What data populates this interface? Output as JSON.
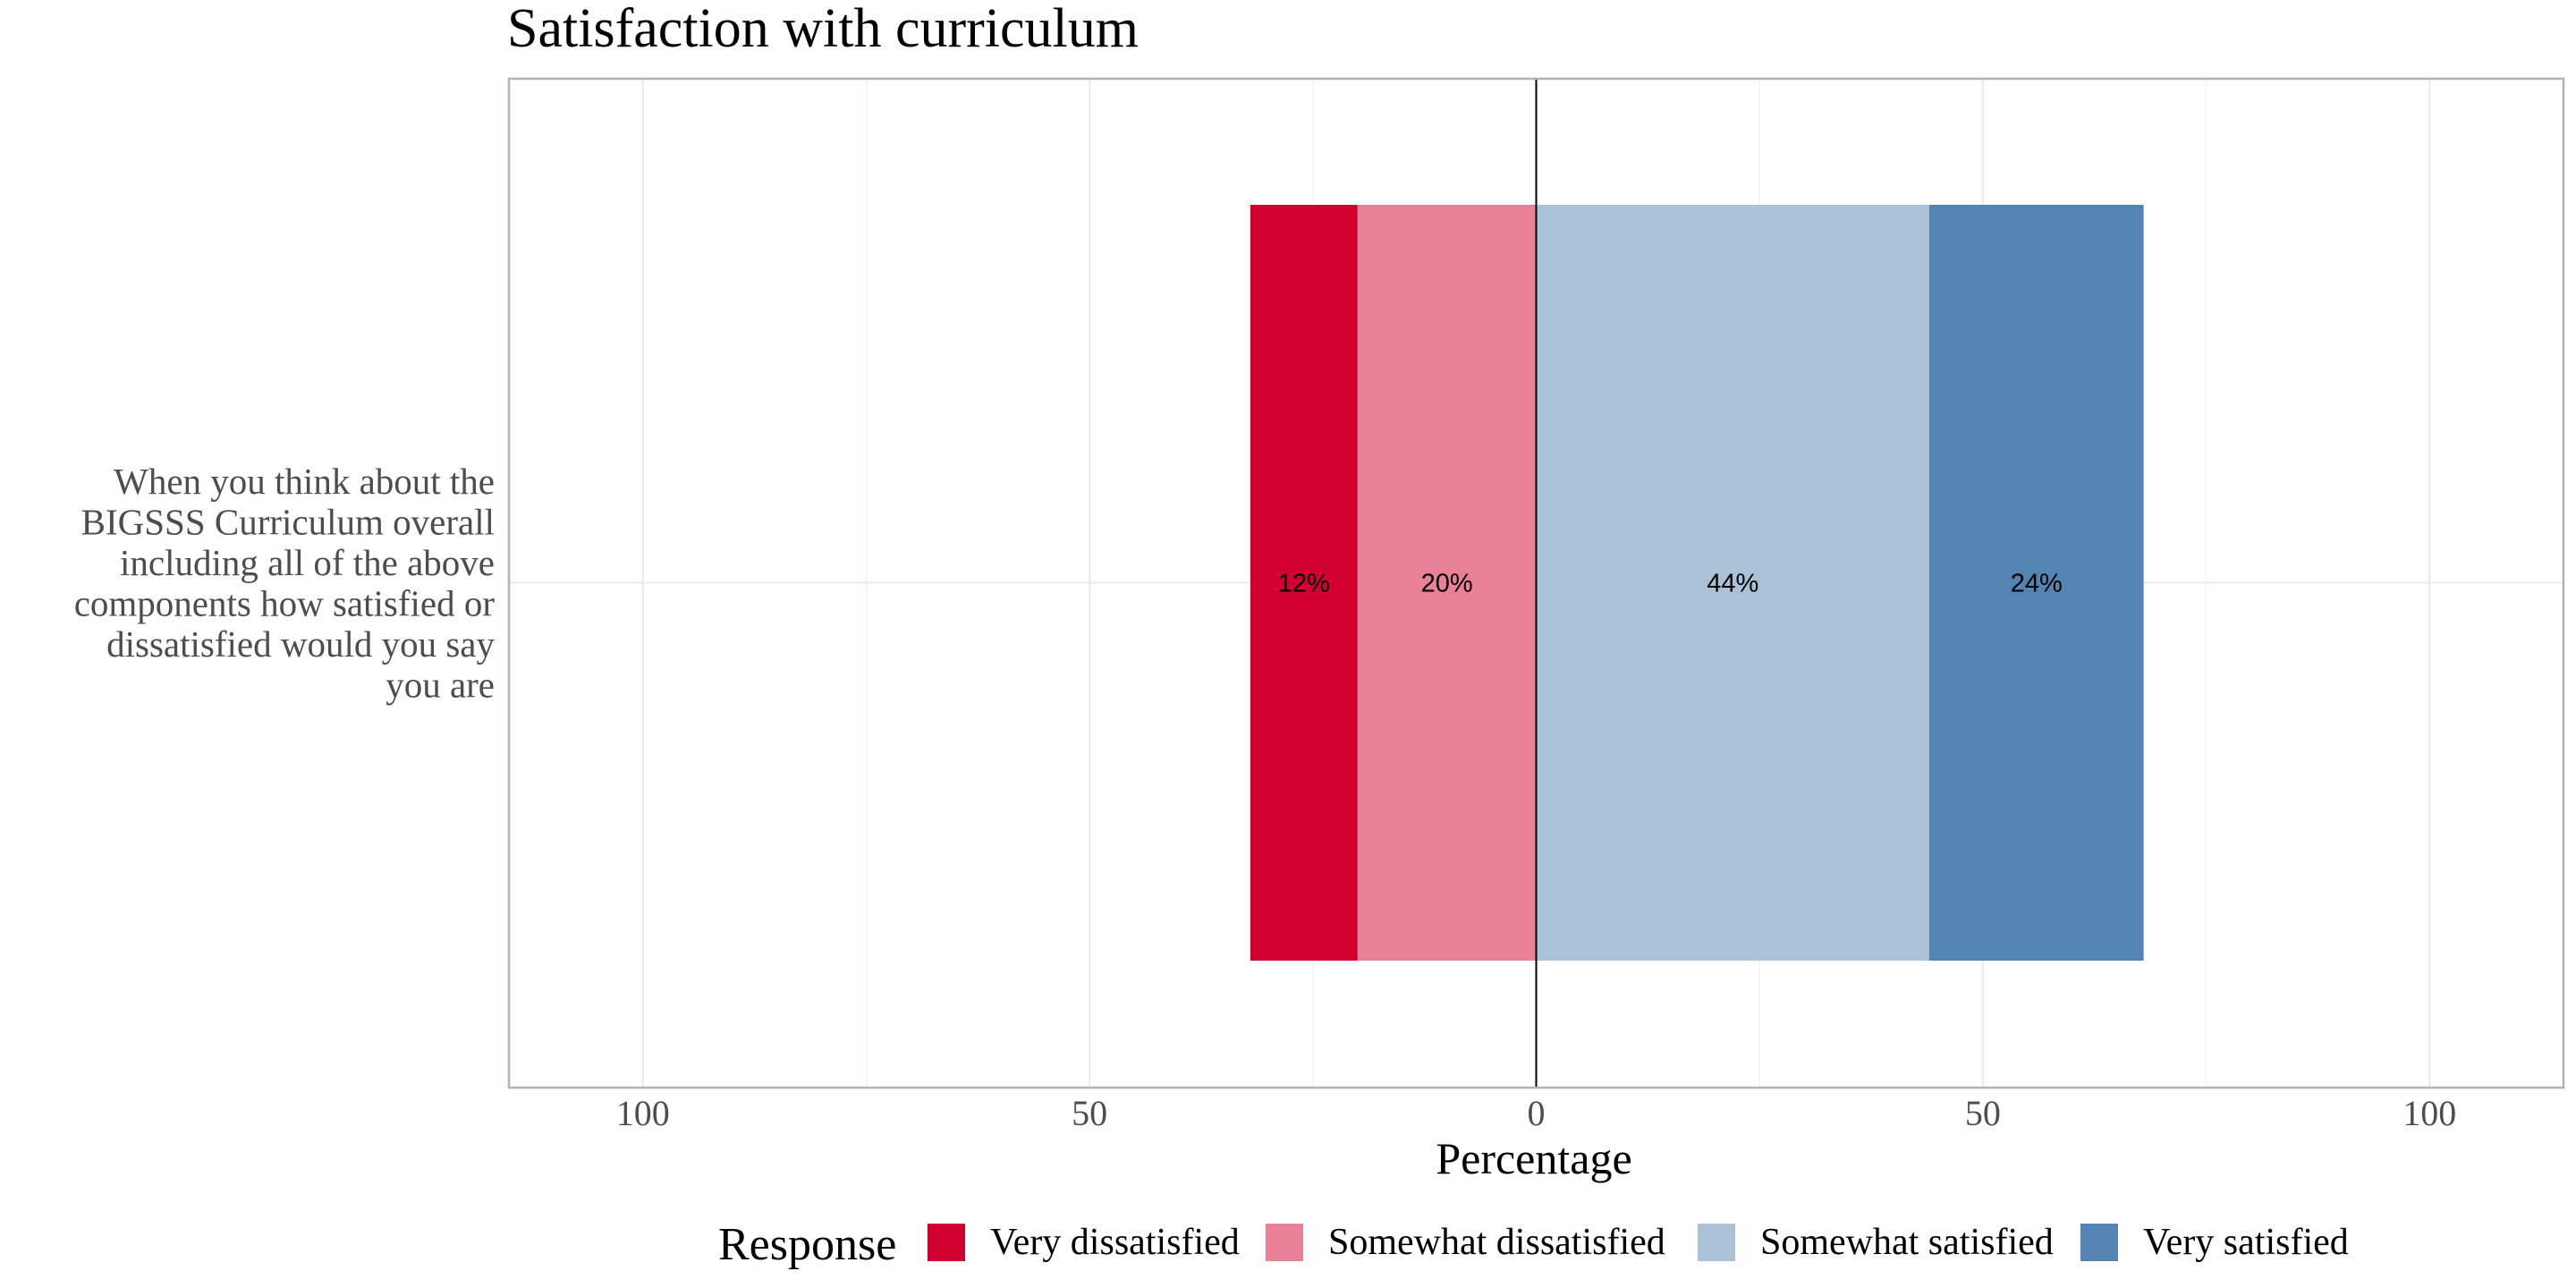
{
  "chart_data": {
    "type": "bar",
    "orientation": "horizontal",
    "diverging": true,
    "title": "Satisfaction with curriculum",
    "xlabel": "Percentage",
    "ylabel": "",
    "xlim": [
      -115,
      115
    ],
    "x_ticks": [
      -100,
      -50,
      0,
      50,
      100
    ],
    "x_tick_labels": [
      "100",
      "50",
      "0",
      "50",
      "100"
    ],
    "grid": true,
    "categories": [
      "When you think about the BIGSSS Curriculum overall including all of the above components how satisfied or dissatisfied would you say you are"
    ],
    "category_label_lines": [
      "When you think about the",
      "BIGSSS Curriculum overall",
      "including all of the above",
      "components how satisfied or",
      "dissatisfied would you say",
      "you are"
    ],
    "legend": {
      "title": "Response",
      "position": "bottom"
    },
    "series": [
      {
        "name": "Very dissatisfied",
        "values": [
          12
        ],
        "label": "12%",
        "side": "negative",
        "color": "#D20030"
      },
      {
        "name": "Somewhat dissatisfied",
        "values": [
          20
        ],
        "label": "20%",
        "side": "negative",
        "color": "#EA8095"
      },
      {
        "name": "Somewhat satisfied",
        "values": [
          44
        ],
        "label": "44%",
        "side": "positive",
        "color": "#AAC1D8"
      },
      {
        "name": "Very satisfied",
        "values": [
          24
        ],
        "label": "24%",
        "side": "positive",
        "color": "#5584B3"
      }
    ]
  }
}
